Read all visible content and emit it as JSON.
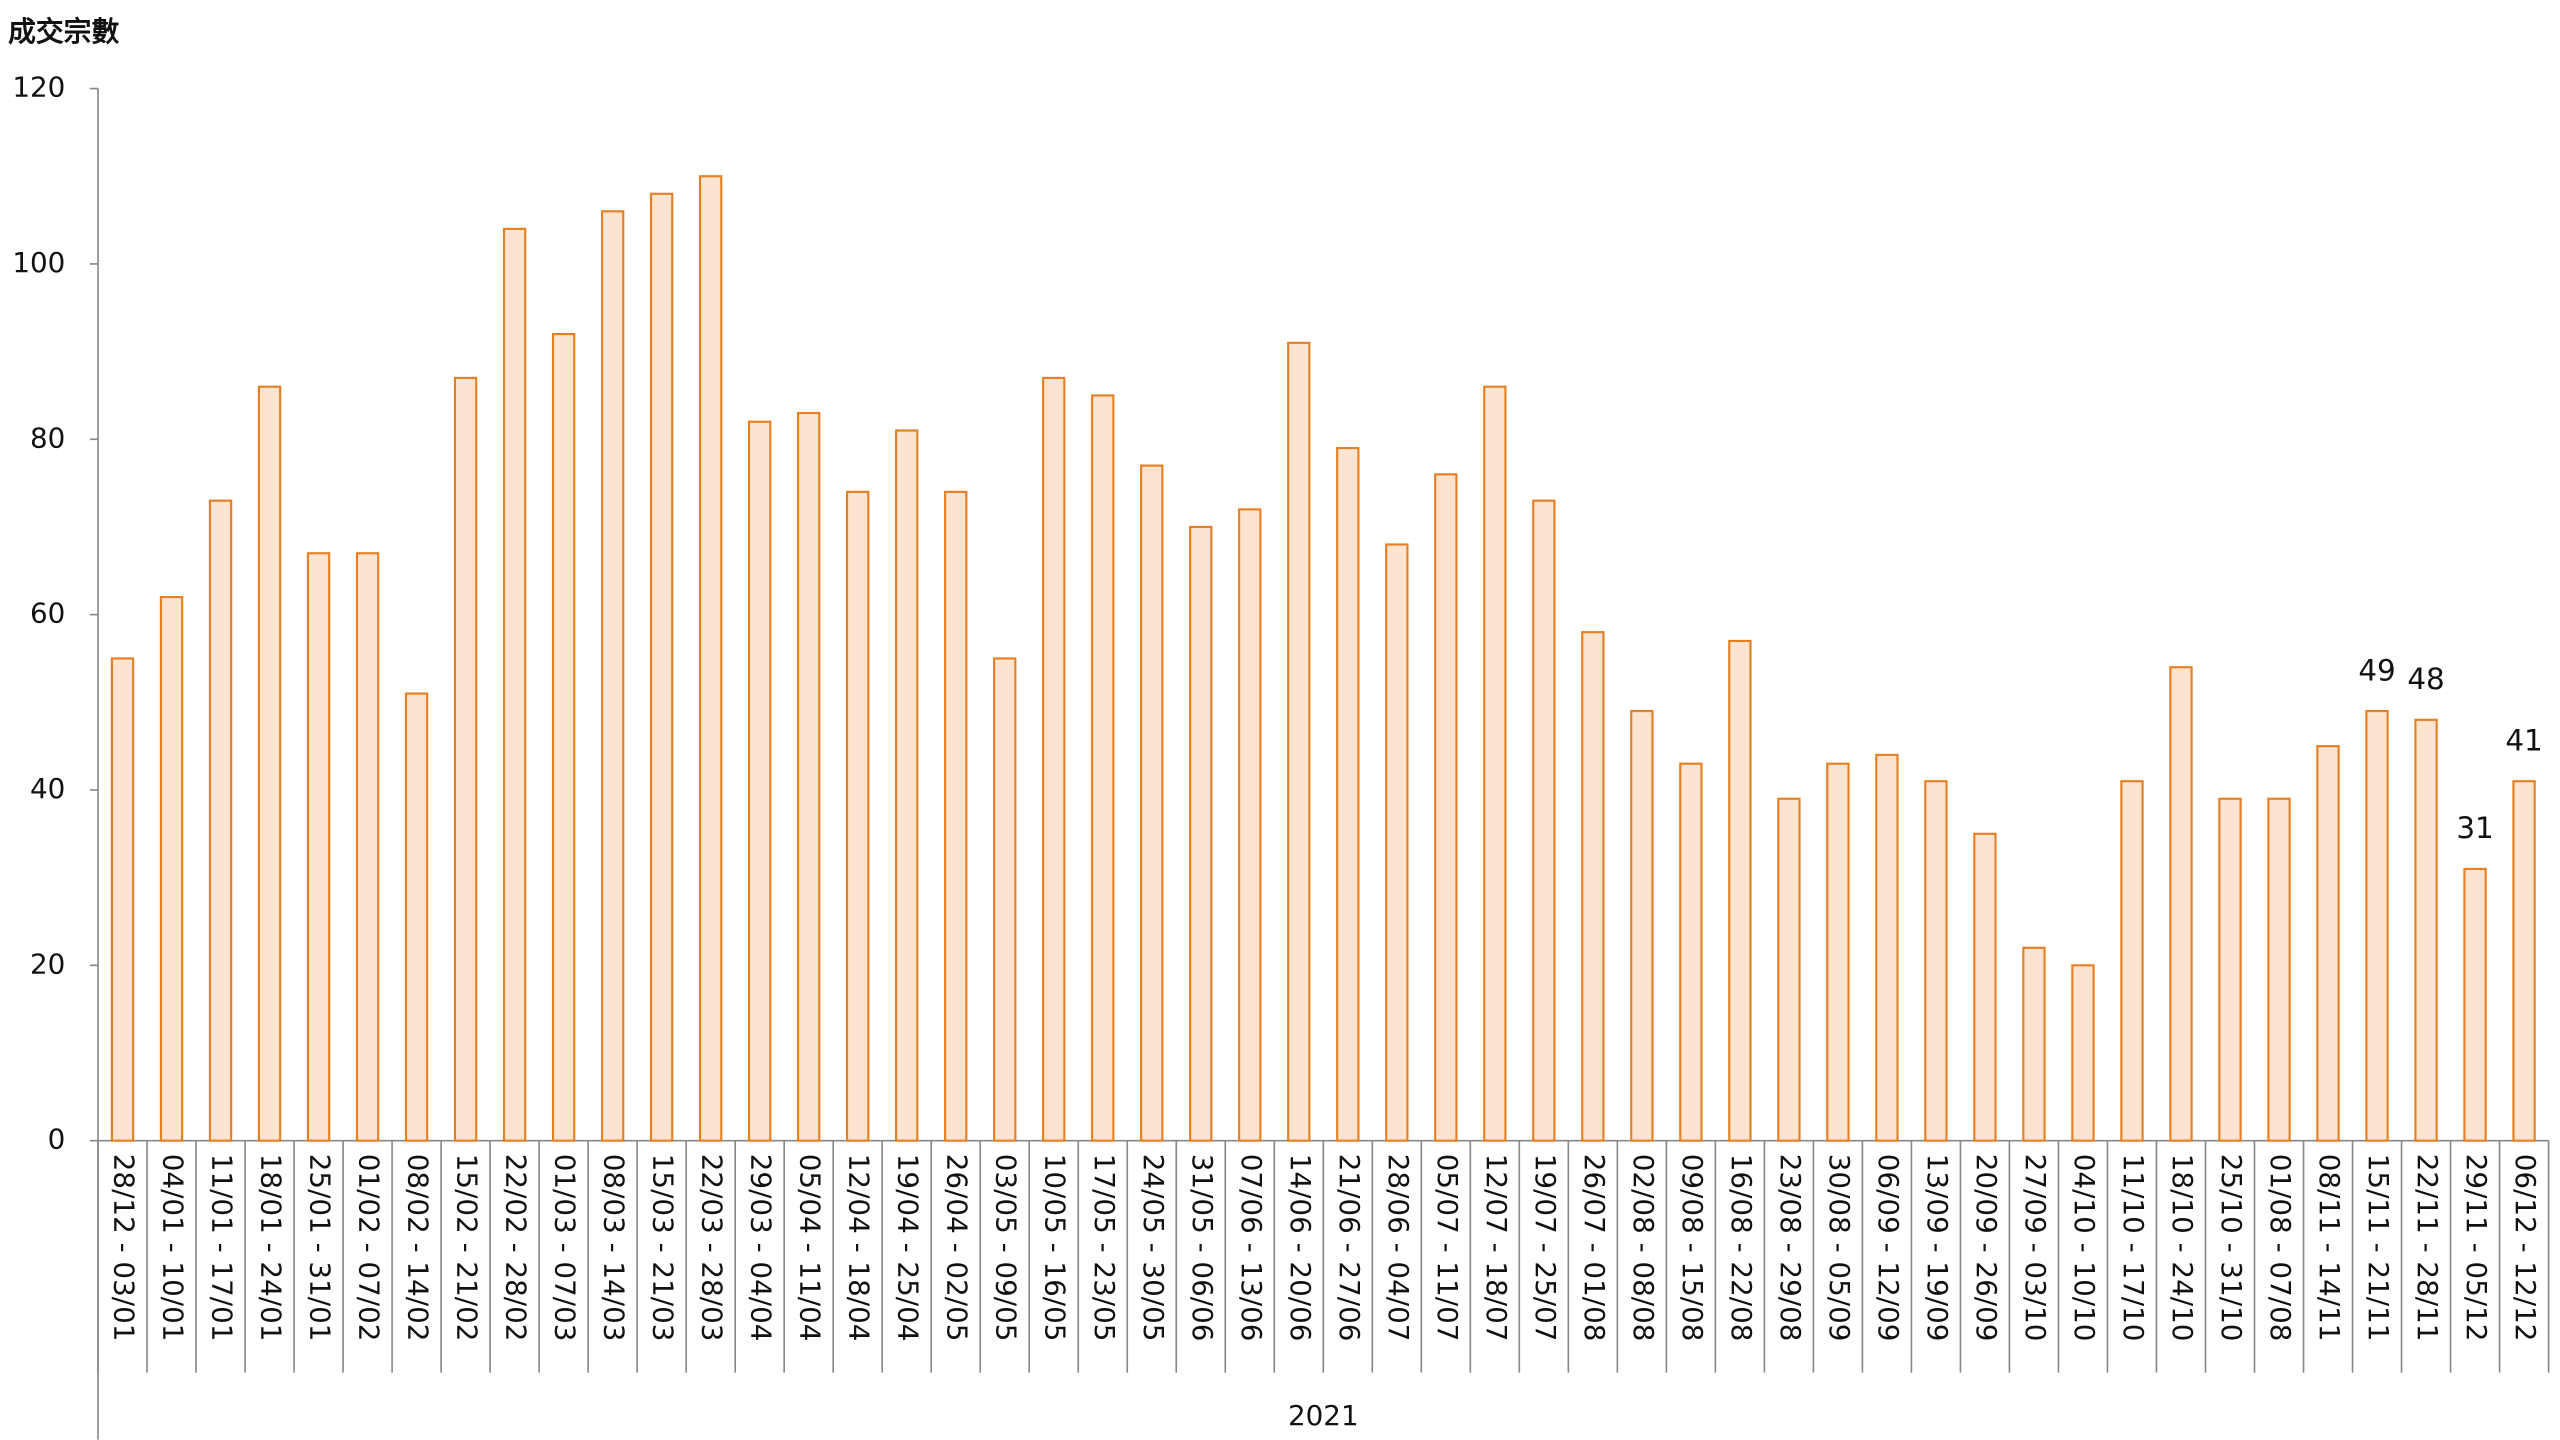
{
  "chart_data": {
    "type": "bar",
    "y_axis_label": "成交宗數",
    "x_axis_label": "2021",
    "categories": [
      "28/12 - 03/01",
      "04/01 - 10/01",
      "11/01 - 17/01",
      "18/01 - 24/01",
      "25/01 - 31/01",
      "01/02 - 07/02",
      "08/02 - 14/02",
      "15/02 - 21/02",
      "22/02 - 28/02",
      "01/03 - 07/03",
      "08/03 - 14/03",
      "15/03 - 21/03",
      "22/03 - 28/03",
      "29/03 - 04/04",
      "05/04 - 11/04",
      "12/04 - 18/04",
      "19/04 - 25/04",
      "26/04 - 02/05",
      "03/05 - 09/05",
      "10/05 - 16/05",
      "17/05 - 23/05",
      "24/05 - 30/05",
      "31/05 - 06/06",
      "07/06 - 13/06",
      "14/06 - 20/06",
      "21/06 - 27/06",
      "28/06 - 04/07",
      "05/07 - 11/07",
      "12/07 - 18/07",
      "19/07 - 25/07",
      "26/07 - 01/08",
      "02/08 - 08/08",
      "09/08 - 15/08",
      "16/08 - 22/08",
      "23/08 - 29/08",
      "30/08 - 05/09",
      "06/09 - 12/09",
      "13/09 - 19/09",
      "20/09 - 26/09",
      "27/09 - 03/10",
      "04/10 - 10/10",
      "11/10 - 17/10",
      "18/10 - 24/10",
      "25/10 - 31/10",
      "01/08 - 07/08",
      "08/11 - 14/11",
      "15/11 - 21/11",
      "22/11 - 28/11",
      "29/11 - 05/12",
      "06/12 - 12/12"
    ],
    "values": [
      55,
      62,
      73,
      86,
      67,
      67,
      51,
      87,
      104,
      92,
      106,
      108,
      110,
      82,
      83,
      74,
      81,
      74,
      55,
      87,
      85,
      77,
      70,
      72,
      91,
      79,
      68,
      76,
      86,
      73,
      58,
      49,
      43,
      57,
      39,
      43,
      44,
      41,
      35,
      22,
      20,
      41,
      54,
      39,
      39,
      45,
      49,
      48,
      31,
      41
    ],
    "value_labels": [
      null,
      null,
      null,
      null,
      null,
      null,
      null,
      null,
      null,
      null,
      null,
      null,
      null,
      null,
      null,
      null,
      null,
      null,
      null,
      null,
      null,
      null,
      null,
      null,
      null,
      null,
      null,
      null,
      null,
      null,
      null,
      null,
      null,
      null,
      null,
      null,
      null,
      null,
      null,
      null,
      null,
      null,
      null,
      null,
      null,
      null,
      "49",
      "48",
      "31",
      "41"
    ],
    "color": "#fce4d0",
    "edge_color": "#e67e22",
    "ylim": [
      0,
      120
    ],
    "yticks": [
      0,
      20,
      40,
      60,
      80,
      100,
      120
    ],
    "grid": false
  }
}
